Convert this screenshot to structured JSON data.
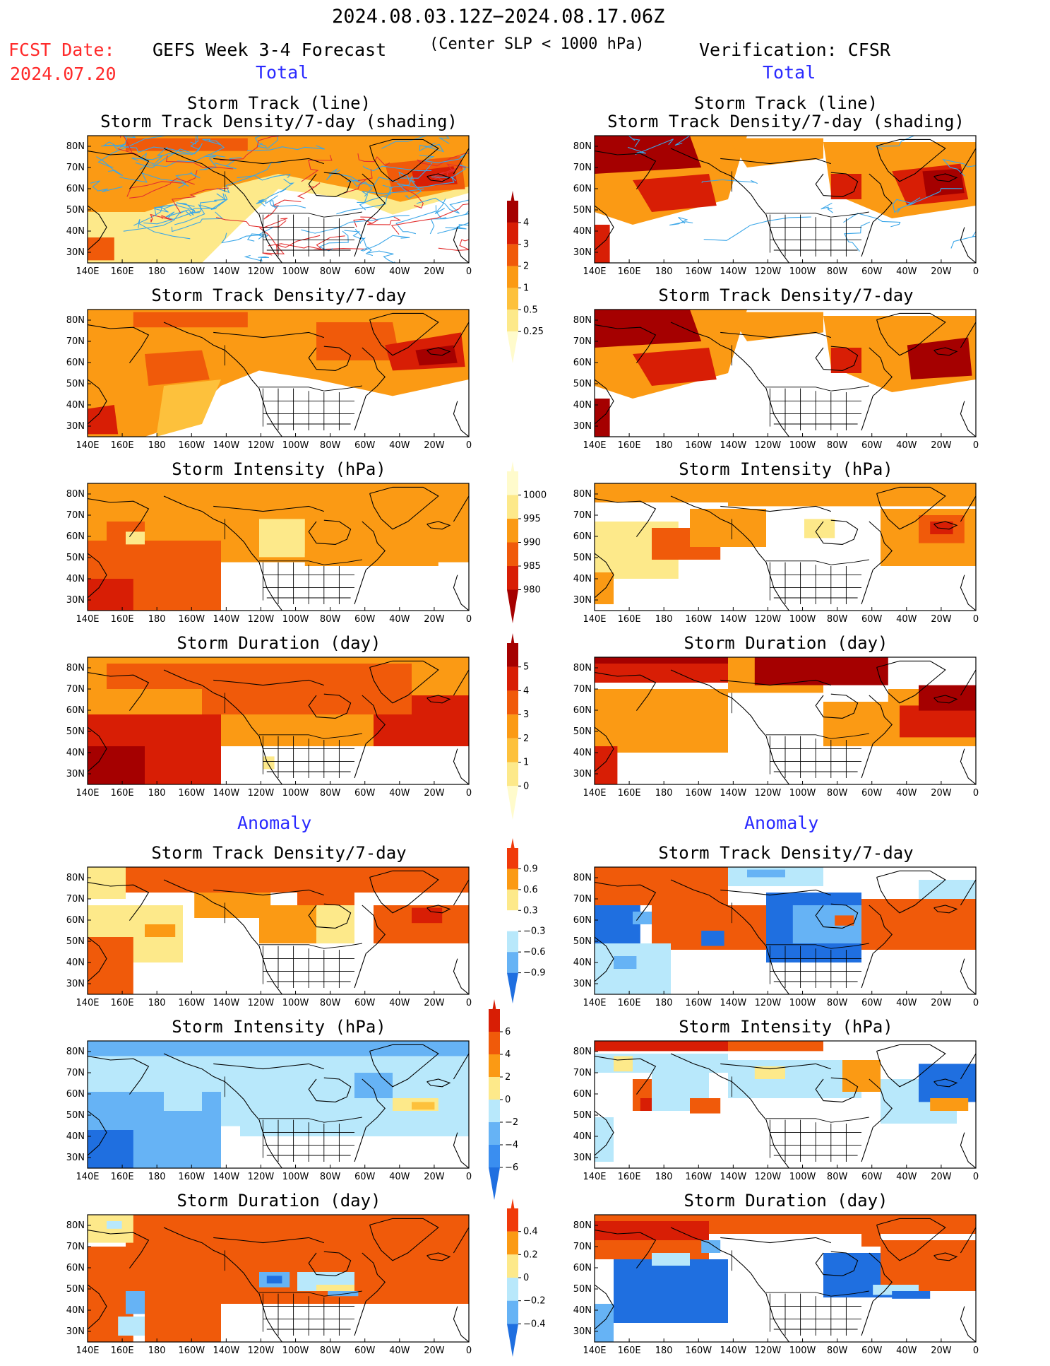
{
  "header": {
    "date_range": "2024.08.03.12Z−2024.08.17.06Z",
    "fcst_label": "FCST Date:",
    "fcst_date": "2024.07.20",
    "forecast_title": "GEFS Week 3-4 Forecast",
    "slp_note": "(Center SLP < 1000 hPa)",
    "verification": "Verification: CFSR",
    "section_total_left": "Total",
    "section_total_right": "Total",
    "section_anomaly_left": "Anomaly",
    "section_anomaly_right": "Anomaly"
  },
  "axes": {
    "lat_labels": [
      "80N",
      "70N",
      "60N",
      "50N",
      "40N",
      "30N"
    ],
    "lon_labels": [
      "140E",
      "160E",
      "180",
      "160W",
      "140W",
      "120W",
      "100W",
      "80W",
      "60W",
      "40W",
      "20W",
      "0"
    ]
  },
  "panels": [
    {
      "id": "l1",
      "title1": "Storm Track (line)",
      "title2": "Storm Track Density/7-day (shading)"
    },
    {
      "id": "r1",
      "title1": "Storm Track (line)",
      "title2": "Storm Track Density/7-day (shading)"
    },
    {
      "id": "l2",
      "title1": "Storm Track Density/7-day"
    },
    {
      "id": "r2",
      "title1": "Storm Track Density/7-day"
    },
    {
      "id": "l3",
      "title1": "Storm Intensity (hPa)"
    },
    {
      "id": "r3",
      "title1": "Storm Intensity (hPa)"
    },
    {
      "id": "l4",
      "title1": "Storm Duration (day)"
    },
    {
      "id": "r4",
      "title1": "Storm Duration (day)"
    },
    {
      "id": "l5",
      "title1": "Storm Track Density/7-day"
    },
    {
      "id": "r5",
      "title1": "Storm Track Density/7-day"
    },
    {
      "id": "l6",
      "title1": "Storm Intensity (hPa)"
    },
    {
      "id": "r6",
      "title1": "Storm Intensity (hPa)"
    },
    {
      "id": "l7",
      "title1": "Storm Duration (day)"
    },
    {
      "id": "r7",
      "title1": "Storm Duration (day)"
    }
  ],
  "colorbars": [
    {
      "id": "density",
      "labels": [
        "4",
        "3",
        "2",
        "1",
        "0.5",
        "0.25"
      ],
      "colors": [
        "#a50000",
        "#d81e05",
        "#f05a0a",
        "#fb9a14",
        "#fdc13c",
        "#fde98a",
        "#fffbcc"
      ]
    },
    {
      "id": "intensity",
      "labels": [
        "1000",
        "995",
        "990",
        "985",
        "980"
      ],
      "colors": [
        "#fffbcc",
        "#fde98a",
        "#fb9a14",
        "#f05a0a",
        "#d81e05",
        "#a50000"
      ]
    },
    {
      "id": "duration",
      "labels": [
        "5",
        "4",
        "3",
        "2",
        "1",
        "0"
      ],
      "colors": [
        "#a50000",
        "#d81e05",
        "#f05a0a",
        "#fb9a14",
        "#fdc13c",
        "#fde98a",
        "#fffbcc"
      ]
    },
    {
      "id": "anom_density",
      "labels": [
        "0.9",
        "0.6",
        "0.3",
        "−0.3",
        "−0.6",
        "−0.9"
      ],
      "colors": [
        "#f03a0a",
        "#fb9a14",
        "#fde98a",
        "#ffffff",
        "#b8e8fb",
        "#66b3f5",
        "#1f6fe0"
      ]
    },
    {
      "id": "anom_intensity",
      "labels": [
        "6",
        "4",
        "2",
        "0",
        "−2",
        "−4",
        "−6"
      ],
      "colors": [
        "#d81e05",
        "#f05a0a",
        "#fb9a14",
        "#fde98a",
        "#b8e8fb",
        "#66b3f5",
        "#3a8ef0",
        "#1f6fe0"
      ]
    },
    {
      "id": "anom_duration",
      "labels": [
        "0.4",
        "0.2",
        "0",
        "−0.2",
        "−0.4"
      ],
      "colors": [
        "#f03a0a",
        "#fb9a14",
        "#fde98a",
        "#b8e8fb",
        "#66b3f5",
        "#1f6fe0"
      ]
    }
  ],
  "palette": {
    "dark_red": "#a50000",
    "red": "#d81e05",
    "orange_red": "#f05a0a",
    "orange": "#fb9a14",
    "light_orange": "#fdc13c",
    "pale_yellow": "#fde98a",
    "cream": "#fffbcc",
    "light_blue": "#b8e8fb",
    "mid_blue": "#66b3f5",
    "blue": "#1f6fe0",
    "track_blue": "#3aa6e8",
    "track_red": "#e23030"
  }
}
